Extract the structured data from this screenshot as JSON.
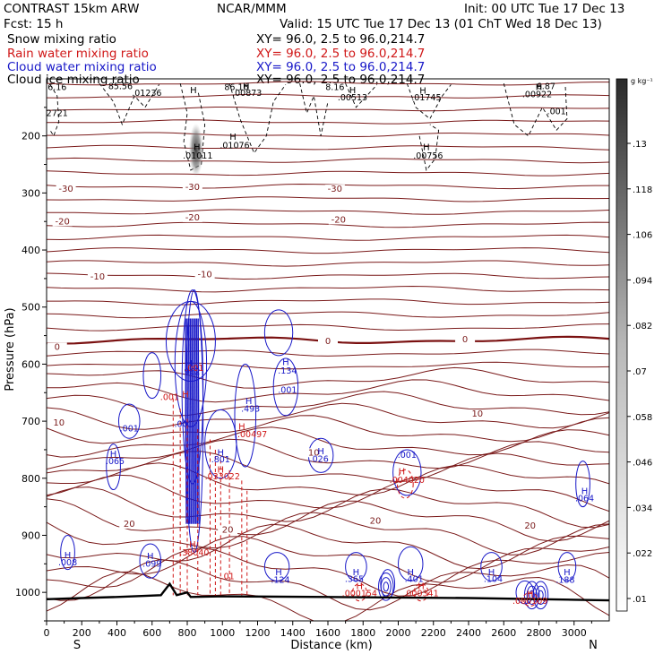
{
  "header": {
    "model": "CONTRAST 15km ARW",
    "fcst": "Fcst:     15 h",
    "center": "NCAR/MMM",
    "init": "Init: 00 UTC Tue 17 Dec 13",
    "valid": "Valid: 15 UTC Tue 17 Dec 13 (01 ChT Wed 18 Dec 13)"
  },
  "fields": [
    {
      "name": "Snow mixing ratio",
      "xy": "XY=  96.0,  2.5 to  96.0,214.7",
      "color": "#000000"
    },
    {
      "name": "Rain water mixing ratio",
      "xy": "XY=  96.0,  2.5 to  96.0,214.7",
      "color": "#d01818"
    },
    {
      "name": "Cloud water mixing ratio",
      "xy": "XY=  96.0,  2.5 to  96.0,214.7",
      "color": "#1818c8"
    },
    {
      "name": "Cloud ice mixing ratio",
      "xy": "XY=  96.0,  2.5 to  96.0,214.7",
      "color": "#000000"
    }
  ],
  "colors": {
    "isotherm": "#7a1a1a",
    "freezing": "#7a1010",
    "rain": "#d01818",
    "cloud_water": "#1818c8",
    "snow": "#000000",
    "terrain": "#000000"
  },
  "chart_data": {
    "type": "contour",
    "xlabel": "Distance (km)",
    "ylabel": "Pressure (hPa)",
    "xlim": [
      0,
      3200
    ],
    "ylim": [
      1050,
      100
    ],
    "x_ticks": [
      "0",
      "200",
      "400",
      "600",
      "800",
      "1000",
      "1200",
      "1400",
      "1600",
      "1800",
      "2000",
      "2200",
      "2400",
      "2600",
      "2800",
      "3000"
    ],
    "y_ticks": [
      "200",
      "300",
      "400",
      "500",
      "600",
      "700",
      "800",
      "900",
      "1000"
    ],
    "orientation": {
      "left": "S",
      "right": "N"
    },
    "colorbar": {
      "unit": "g kg⁻¹",
      "labels": [
        ".01",
        ".022",
        ".034",
        ".046",
        ".058",
        ".07",
        ".082",
        ".094",
        ".106",
        ".118",
        ".13"
      ]
    },
    "isotherm_labels": [
      {
        "x": 110,
        "p": 298,
        "text": "-30"
      },
      {
        "x": 830,
        "p": 295,
        "text": "-30"
      },
      {
        "x": 1640,
        "p": 298,
        "text": "-30"
      },
      {
        "x": 90,
        "p": 355,
        "text": "-20"
      },
      {
        "x": 830,
        "p": 348,
        "text": "-20"
      },
      {
        "x": 1660,
        "p": 352,
        "text": "-20"
      },
      {
        "x": 290,
        "p": 452,
        "text": "-10"
      },
      {
        "x": 900,
        "p": 448,
        "text": "-10"
      },
      {
        "x": 60,
        "p": 575,
        "text": "0"
      },
      {
        "x": 1600,
        "p": 565,
        "text": "0"
      },
      {
        "x": 2380,
        "p": 562,
        "text": "0"
      },
      {
        "x": 70,
        "p": 708,
        "text": "10"
      },
      {
        "x": 1520,
        "p": 760,
        "text": "10"
      },
      {
        "x": 2450,
        "p": 692,
        "text": "10"
      },
      {
        "x": 470,
        "p": 885,
        "text": "20"
      },
      {
        "x": 1030,
        "p": 895,
        "text": "20"
      },
      {
        "x": 1870,
        "p": 880,
        "text": "20"
      },
      {
        "x": 2750,
        "p": 888,
        "text": "20"
      }
    ],
    "snow_labels": [
      {
        "x": 60,
        "p": 120,
        "text": "6.16"
      },
      {
        "x": 420,
        "p": 118,
        "text": "85.56"
      },
      {
        "x": 570,
        "p": 130,
        "text": ".01236"
      },
      {
        "x": 1080,
        "p": 120,
        "text": "86.16"
      },
      {
        "x": 1140,
        "p": 130,
        "text": ".00873"
      },
      {
        "x": 1640,
        "p": 120,
        "text": "8.16"
      },
      {
        "x": 1740,
        "p": 138,
        "text": ".00513"
      },
      {
        "x": 2160,
        "p": 138,
        "text": ".01745"
      },
      {
        "x": 2790,
        "p": 132,
        "text": ".00922"
      },
      {
        "x": 2840,
        "p": 118,
        "text": "6.87"
      },
      {
        "x": 2900,
        "p": 162,
        "text": ".001"
      },
      {
        "x": 60,
        "p": 165,
        "text": "2721"
      },
      {
        "x": 860,
        "p": 240,
        "text": ".01011"
      },
      {
        "x": 1070,
        "p": 222,
        "text": ".01076"
      },
      {
        "x": 2170,
        "p": 240,
        "text": ".00756"
      }
    ],
    "rain_labels": [
      {
        "x": 700,
        "p": 663,
        "text": ".001"
      },
      {
        "x": 840,
        "p": 612,
        "text": ".001"
      },
      {
        "x": 1170,
        "p": 728,
        "text": ".00497"
      },
      {
        "x": 1000,
        "p": 802,
        "text": ".033022"
      },
      {
        "x": 840,
        "p": 935,
        "text": ".38040"
      },
      {
        "x": 1030,
        "p": 977,
        "text": ".01"
      },
      {
        "x": 2050,
        "p": 808,
        "text": ".004020"
      },
      {
        "x": 1780,
        "p": 1007,
        "text": ".000154"
      },
      {
        "x": 2130,
        "p": 1007,
        "text": ".000341"
      },
      {
        "x": 2750,
        "p": 1020,
        "text": ".000109"
      }
    ],
    "cloud_labels": [
      {
        "x": 1370,
        "p": 617,
        "text": ".134"
      },
      {
        "x": 1370,
        "p": 650,
        "text": ".001"
      },
      {
        "x": 820,
        "p": 618,
        "text": ".962"
      },
      {
        "x": 1160,
        "p": 683,
        "text": ".493"
      },
      {
        "x": 470,
        "p": 718,
        "text": ".001"
      },
      {
        "x": 780,
        "p": 710,
        "text": ".001"
      },
      {
        "x": 990,
        "p": 772,
        "text": ".801"
      },
      {
        "x": 1550,
        "p": 771,
        "text": ".026"
      },
      {
        "x": 2050,
        "p": 764,
        "text": ".001"
      },
      {
        "x": 390,
        "p": 775,
        "text": ".065"
      },
      {
        "x": 3060,
        "p": 840,
        "text": ".064"
      },
      {
        "x": 120,
        "p": 953,
        "text": ".008"
      },
      {
        "x": 600,
        "p": 955,
        "text": ".099"
      },
      {
        "x": 1330,
        "p": 983,
        "text": ".124"
      },
      {
        "x": 1750,
        "p": 982,
        "text": ".365"
      },
      {
        "x": 2090,
        "p": 982,
        "text": ".401"
      },
      {
        "x": 2540,
        "p": 982,
        "text": ".104"
      },
      {
        "x": 2950,
        "p": 983,
        "text": ".188"
      }
    ],
    "h_markers": [
      {
        "x": 835,
        "p": 125,
        "color": "snow"
      },
      {
        "x": 1135,
        "p": 118,
        "color": "snow"
      },
      {
        "x": 1740,
        "p": 125,
        "color": "snow"
      },
      {
        "x": 2140,
        "p": 126,
        "color": "snow"
      },
      {
        "x": 2800,
        "p": 120,
        "color": "snow"
      },
      {
        "x": 1060,
        "p": 207,
        "color": "snow"
      },
      {
        "x": 855,
        "p": 225,
        "color": "snow"
      },
      {
        "x": 2160,
        "p": 225,
        "color": "snow"
      },
      {
        "x": 1360,
        "p": 602,
        "color": "cloud_water"
      },
      {
        "x": 810,
        "p": 604,
        "color": "cloud_water"
      },
      {
        "x": 1150,
        "p": 670,
        "color": "cloud_water"
      },
      {
        "x": 790,
        "p": 658,
        "color": "rain"
      },
      {
        "x": 1110,
        "p": 715,
        "color": "rain"
      },
      {
        "x": 990,
        "p": 760,
        "color": "cloud_water"
      },
      {
        "x": 1560,
        "p": 758,
        "color": "cloud_water"
      },
      {
        "x": 990,
        "p": 790,
        "color": "rain"
      },
      {
        "x": 2020,
        "p": 793,
        "color": "rain"
      },
      {
        "x": 380,
        "p": 763,
        "color": "cloud_water"
      },
      {
        "x": 3060,
        "p": 828,
        "color": "cloud_water"
      },
      {
        "x": 120,
        "p": 940,
        "color": "cloud_water"
      },
      {
        "x": 590,
        "p": 942,
        "color": "cloud_water"
      },
      {
        "x": 1320,
        "p": 970,
        "color": "cloud_water"
      },
      {
        "x": 1760,
        "p": 970,
        "color": "cloud_water"
      },
      {
        "x": 2070,
        "p": 970,
        "color": "cloud_water"
      },
      {
        "x": 2530,
        "p": 970,
        "color": "cloud_water"
      },
      {
        "x": 2960,
        "p": 970,
        "color": "cloud_water"
      },
      {
        "x": 830,
        "p": 921,
        "color": "rain"
      },
      {
        "x": 1780,
        "p": 994,
        "color": "rain"
      },
      {
        "x": 2130,
        "p": 994,
        "color": "rain"
      },
      {
        "x": 2750,
        "p": 1008,
        "color": "rain"
      }
    ]
  }
}
